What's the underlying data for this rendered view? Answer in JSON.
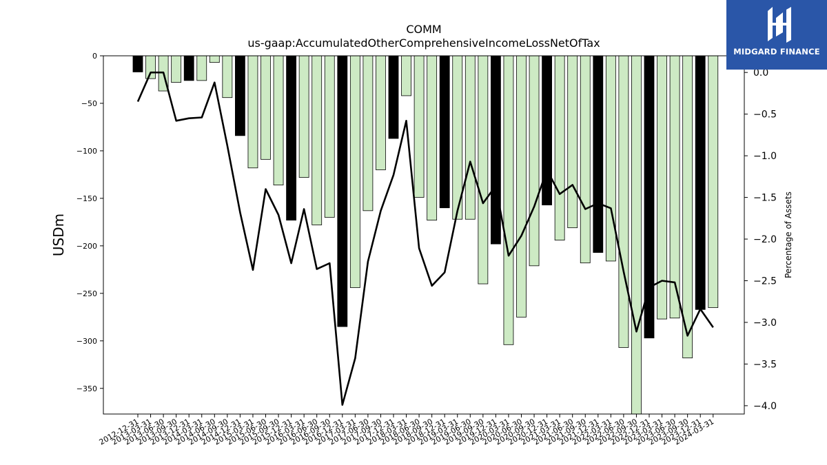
{
  "brand": {
    "name": "MIDGARD FINANCE",
    "background": "#2a56a8"
  },
  "chart_data": {
    "type": "bar",
    "title": "COMM",
    "subtitle": "us-gaap:AccumulatedOtherComprehensiveIncomeLossNetOfTax",
    "ylabel": "USDm",
    "y2label": "Percentage of Assets",
    "ylim": [
      -377,
      0
    ],
    "y2lim": [
      -4.1,
      0.2
    ],
    "yticks": [
      0,
      -50,
      -100,
      -150,
      -200,
      -250,
      -300,
      -350
    ],
    "y2ticks": [
      0.0,
      -0.5,
      -1.0,
      -1.5,
      -2.0,
      -2.5,
      -3.0,
      -3.5,
      -4.0
    ],
    "grid": false,
    "colors": {
      "q4_bar": "#000000",
      "other_bar": "#cdeac4",
      "line": "#000000"
    },
    "categories": [
      "2012-12-31",
      "2013-03-31",
      "2013-06-30",
      "2013-09-30",
      "2013-12-31",
      "2014-03-31",
      "2014-06-30",
      "2014-09-30",
      "2014-12-31",
      "2015-03-31",
      "2015-06-30",
      "2015-09-30",
      "2015-12-31",
      "2016-03-31",
      "2016-06-30",
      "2016-09-30",
      "2016-12-31",
      "2017-03-31",
      "2017-06-30",
      "2017-09-30",
      "2017-12-31",
      "2018-03-31",
      "2018-06-30",
      "2018-09-30",
      "2018-12-31",
      "2019-03-31",
      "2019-06-30",
      "2019-09-30",
      "2019-12-31",
      "2020-03-31",
      "2020-06-30",
      "2020-09-30",
      "2020-12-31",
      "2021-03-31",
      "2021-06-30",
      "2021-09-30",
      "2021-12-31",
      "2022-03-31",
      "2022-06-30",
      "2022-09-30",
      "2022-12-31",
      "2023-03-31",
      "2023-06-30",
      "2023-09-30",
      "2023-12-31",
      "2024-03-31"
    ],
    "series": [
      {
        "kind": "bar",
        "values": [
          -17,
          -24,
          -37,
          -28,
          -26,
          -26,
          -7,
          -44,
          -84,
          -118,
          -109,
          -136,
          -173,
          -128,
          -178,
          -170,
          -285,
          -244,
          -163,
          -120,
          -87,
          -42,
          -149,
          -173,
          -160,
          -172,
          -172,
          -240,
          -198,
          -304,
          -275,
          -221,
          -157,
          -194,
          -181,
          -218,
          -207,
          -216,
          -307,
          -377,
          -297,
          -277,
          -276,
          -318,
          -267,
          -265
        ]
      },
      {
        "kind": "line",
        "axis": "right",
        "values": [
          -0.35,
          -0.0,
          -0.0,
          -0.58,
          -0.55,
          -0.54,
          -0.12,
          -0.88,
          -1.68,
          -2.37,
          -1.4,
          -1.71,
          -2.29,
          -1.64,
          -2.36,
          -2.29,
          -3.99,
          -3.43,
          -2.27,
          -1.66,
          -1.23,
          -0.58,
          -2.11,
          -2.56,
          -2.4,
          -1.66,
          -1.07,
          -1.57,
          -1.36,
          -2.2,
          -1.96,
          -1.61,
          -1.17,
          -1.46,
          -1.35,
          -1.64,
          -1.57,
          -1.63,
          -2.39,
          -3.11,
          -2.58,
          -2.5,
          -2.52,
          -3.16,
          -2.84,
          -3.06
        ]
      }
    ]
  }
}
